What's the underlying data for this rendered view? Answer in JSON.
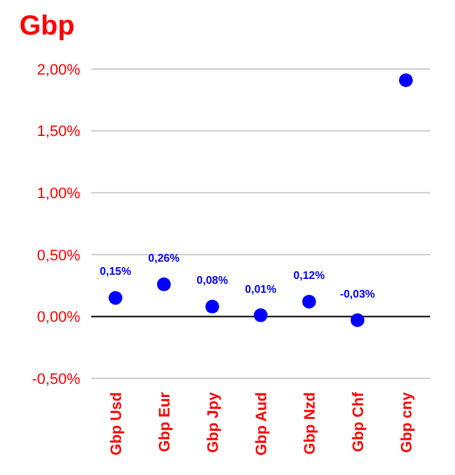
{
  "chart_data": {
    "type": "scatter",
    "title": "Gbp",
    "categories": [
      "Gbp Usd",
      "Gbp Eur",
      "Gbp Jpy",
      "Gbp Aud",
      "Gbp Nzd",
      "Gbp Chf",
      "Gbp cny"
    ],
    "values": [
      0.15,
      0.26,
      0.08,
      0.01,
      0.12,
      -0.03,
      1.91
    ],
    "value_labels": [
      "0,15%",
      "0,26%",
      "0,08%",
      "0,01%",
      "0,12%",
      "-0,03%",
      null
    ],
    "color": "#0000ff",
    "ylim": [
      -0.5,
      2.0
    ],
    "yticks": [
      {
        "value": -0.5,
        "label": "-0,50%"
      },
      {
        "value": 0,
        "label": "0,00%"
      },
      {
        "value": 0.5,
        "label": "0,50%"
      },
      {
        "value": 1.0,
        "label": "1,00%"
      },
      {
        "value": 1.5,
        "label": "1,50%"
      },
      {
        "value": 2.0,
        "label": "2,00%"
      }
    ],
    "ref_lines": [
      {
        "axis": "y",
        "value": 0,
        "color": "#000000"
      }
    ],
    "grid": "y",
    "marker": "circle"
  }
}
